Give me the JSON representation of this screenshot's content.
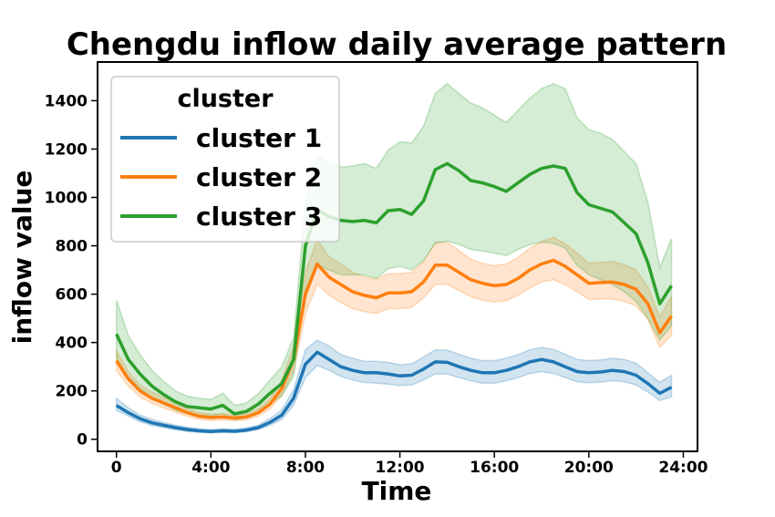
{
  "chart_data": {
    "type": "line",
    "title": "Chengdu inflow daily average pattern",
    "xlabel": "Time",
    "ylabel": "inflow value",
    "x_unit": "hours",
    "xlim": [
      -0.8,
      24.6
    ],
    "ylim": [
      -50,
      1560
    ],
    "x_ticks": [
      0,
      4,
      8,
      12,
      16,
      20,
      24
    ],
    "x_tick_labels": [
      "0",
      "4:00",
      "8:00",
      "12:00",
      "16:00",
      "20:00",
      "24:00"
    ],
    "y_ticks": [
      0,
      200,
      400,
      600,
      800,
      1000,
      1200,
      1400
    ],
    "y_tick_labels": [
      "0",
      "200",
      "400",
      "600",
      "800",
      "1000",
      "1200",
      "1400"
    ],
    "grid": false,
    "legend": {
      "title": "cluster",
      "placement": "top-left"
    },
    "x": [
      0,
      0.5,
      1,
      1.5,
      2,
      2.5,
      3,
      3.5,
      4,
      4.5,
      5,
      5.5,
      6,
      6.5,
      7,
      7.5,
      8,
      8.5,
      9,
      9.5,
      10,
      10.5,
      11,
      11.5,
      12,
      12.5,
      13,
      13.5,
      14,
      14.5,
      15,
      15.5,
      16,
      16.5,
      17,
      17.5,
      18,
      18.5,
      19,
      19.5,
      20,
      20.5,
      21,
      21.5,
      22,
      22.5,
      23,
      23.5
    ],
    "series": [
      {
        "name": "cluster 1",
        "color": "#1f77b4",
        "values": [
          140,
          110,
          85,
          68,
          58,
          48,
          40,
          35,
          32,
          35,
          33,
          38,
          48,
          70,
          100,
          170,
          310,
          360,
          330,
          300,
          285,
          275,
          275,
          270,
          262,
          265,
          290,
          320,
          318,
          300,
          285,
          275,
          275,
          285,
          300,
          320,
          330,
          320,
          300,
          280,
          275,
          278,
          285,
          280,
          265,
          230,
          190,
          215
        ],
        "lower": [
          120,
          95,
          72,
          57,
          48,
          39,
          32,
          28,
          26,
          28,
          27,
          31,
          40,
          58,
          82,
          140,
          255,
          305,
          285,
          260,
          245,
          235,
          232,
          228,
          222,
          225,
          245,
          270,
          270,
          255,
          242,
          232,
          232,
          242,
          255,
          272,
          280,
          272,
          255,
          238,
          233,
          236,
          242,
          238,
          225,
          195,
          160,
          175
        ],
        "upper": [
          170,
          130,
          100,
          82,
          70,
          58,
          50,
          44,
          40,
          44,
          41,
          47,
          58,
          85,
          122,
          205,
          370,
          410,
          385,
          350,
          335,
          322,
          322,
          318,
          308,
          312,
          340,
          370,
          368,
          352,
          335,
          325,
          325,
          335,
          350,
          370,
          380,
          372,
          352,
          330,
          325,
          328,
          335,
          330,
          315,
          275,
          235,
          265
        ]
      },
      {
        "name": "cluster 2",
        "color": "#ff7f0e",
        "values": [
          325,
          250,
          200,
          170,
          150,
          130,
          110,
          95,
          90,
          92,
          88,
          92,
          110,
          145,
          210,
          330,
          600,
          725,
          670,
          640,
          610,
          595,
          585,
          605,
          605,
          610,
          650,
          720,
          720,
          690,
          660,
          645,
          635,
          640,
          665,
          700,
          725,
          740,
          715,
          680,
          645,
          648,
          650,
          640,
          620,
          560,
          440,
          510
        ],
        "lower": [
          285,
          220,
          175,
          148,
          130,
          112,
          95,
          82,
          78,
          80,
          76,
          80,
          96,
          125,
          180,
          280,
          520,
          640,
          595,
          565,
          540,
          528,
          520,
          540,
          540,
          545,
          585,
          640,
          640,
          615,
          590,
          575,
          568,
          572,
          595,
          625,
          650,
          660,
          640,
          610,
          578,
          580,
          580,
          570,
          552,
          495,
          380,
          430
        ],
        "upper": [
          365,
          280,
          225,
          195,
          172,
          150,
          127,
          110,
          103,
          106,
          100,
          105,
          126,
          168,
          245,
          385,
          690,
          825,
          755,
          725,
          690,
          672,
          662,
          685,
          685,
          690,
          735,
          815,
          815,
          780,
          745,
          728,
          718,
          725,
          752,
          790,
          818,
          835,
          808,
          770,
          728,
          732,
          735,
          722,
          700,
          630,
          505,
          590
        ]
      },
      {
        "name": "cluster 3",
        "color": "#2ca02c",
        "values": [
          435,
          330,
          270,
          220,
          185,
          155,
          135,
          130,
          125,
          140,
          105,
          115,
          145,
          190,
          230,
          330,
          800,
          950,
          920,
          905,
          900,
          905,
          895,
          945,
          950,
          930,
          985,
          1115,
          1140,
          1110,
          1070,
          1060,
          1045,
          1025,
          1060,
          1095,
          1120,
          1130,
          1120,
          1020,
          970,
          955,
          940,
          895,
          850,
          730,
          560,
          635
        ],
        "lower": [
          335,
          255,
          210,
          172,
          145,
          120,
          105,
          100,
          95,
          105,
          80,
          88,
          110,
          145,
          180,
          260,
          620,
          720,
          700,
          680,
          680,
          680,
          665,
          705,
          715,
          700,
          740,
          810,
          820,
          805,
          785,
          778,
          770,
          760,
          785,
          805,
          815,
          810,
          790,
          720,
          680,
          660,
          640,
          610,
          570,
          500,
          410,
          470
        ],
        "upper": [
          575,
          430,
          350,
          285,
          240,
          200,
          178,
          170,
          165,
          190,
          140,
          150,
          188,
          245,
          300,
          420,
          980,
          1170,
          1140,
          1125,
          1130,
          1140,
          1120,
          1195,
          1230,
          1225,
          1295,
          1430,
          1470,
          1430,
          1390,
          1370,
          1340,
          1310,
          1360,
          1410,
          1450,
          1470,
          1450,
          1330,
          1280,
          1265,
          1240,
          1190,
          1140,
          980,
          710,
          830
        ]
      }
    ]
  }
}
